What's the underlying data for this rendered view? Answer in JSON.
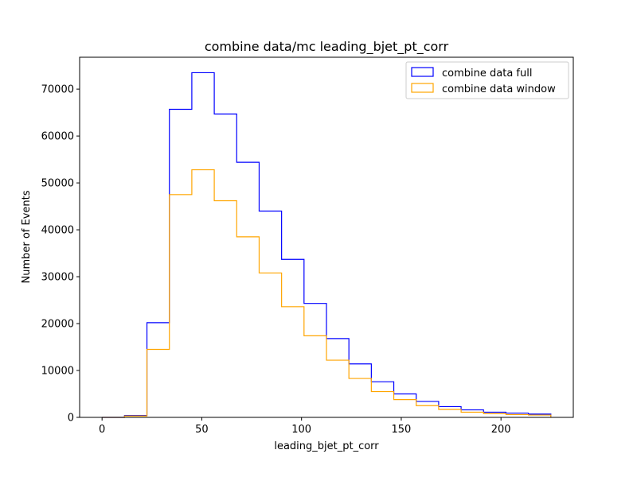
{
  "chart_data": {
    "type": "histogram-step",
    "title": "combine data/mc leading_bjet_pt_corr",
    "xlabel": "leading_bjet_pt_corr",
    "ylabel": "Number of Events",
    "xlim": [
      -11.25,
      236.25
    ],
    "ylim": [
      0,
      76800
    ],
    "xticks": [
      0,
      50,
      100,
      150,
      200
    ],
    "yticks": [
      0,
      10000,
      20000,
      30000,
      40000,
      50000,
      60000,
      70000
    ],
    "legend_position": "top-right",
    "bin_edges": [
      0,
      11.25,
      22.5,
      33.75,
      45,
      56.25,
      67.5,
      78.75,
      90,
      101.25,
      112.5,
      123.75,
      135,
      146.25,
      157.5,
      168.75,
      180,
      191.25,
      202.5,
      213.75,
      225
    ],
    "series": [
      {
        "name": "combine data full",
        "color": "#0000ff",
        "values": [
          0,
          400,
          20200,
          65700,
          73500,
          64700,
          54400,
          44000,
          33700,
          24300,
          16800,
          11400,
          7600,
          5000,
          3400,
          2300,
          1600,
          1100,
          900,
          700
        ]
      },
      {
        "name": "combine data window",
        "color": "#ffa500",
        "values": [
          0,
          300,
          14500,
          47500,
          52800,
          46200,
          38500,
          30800,
          23600,
          17400,
          12200,
          8300,
          5500,
          3800,
          2500,
          1700,
          1100,
          800,
          600,
          500
        ]
      }
    ]
  }
}
